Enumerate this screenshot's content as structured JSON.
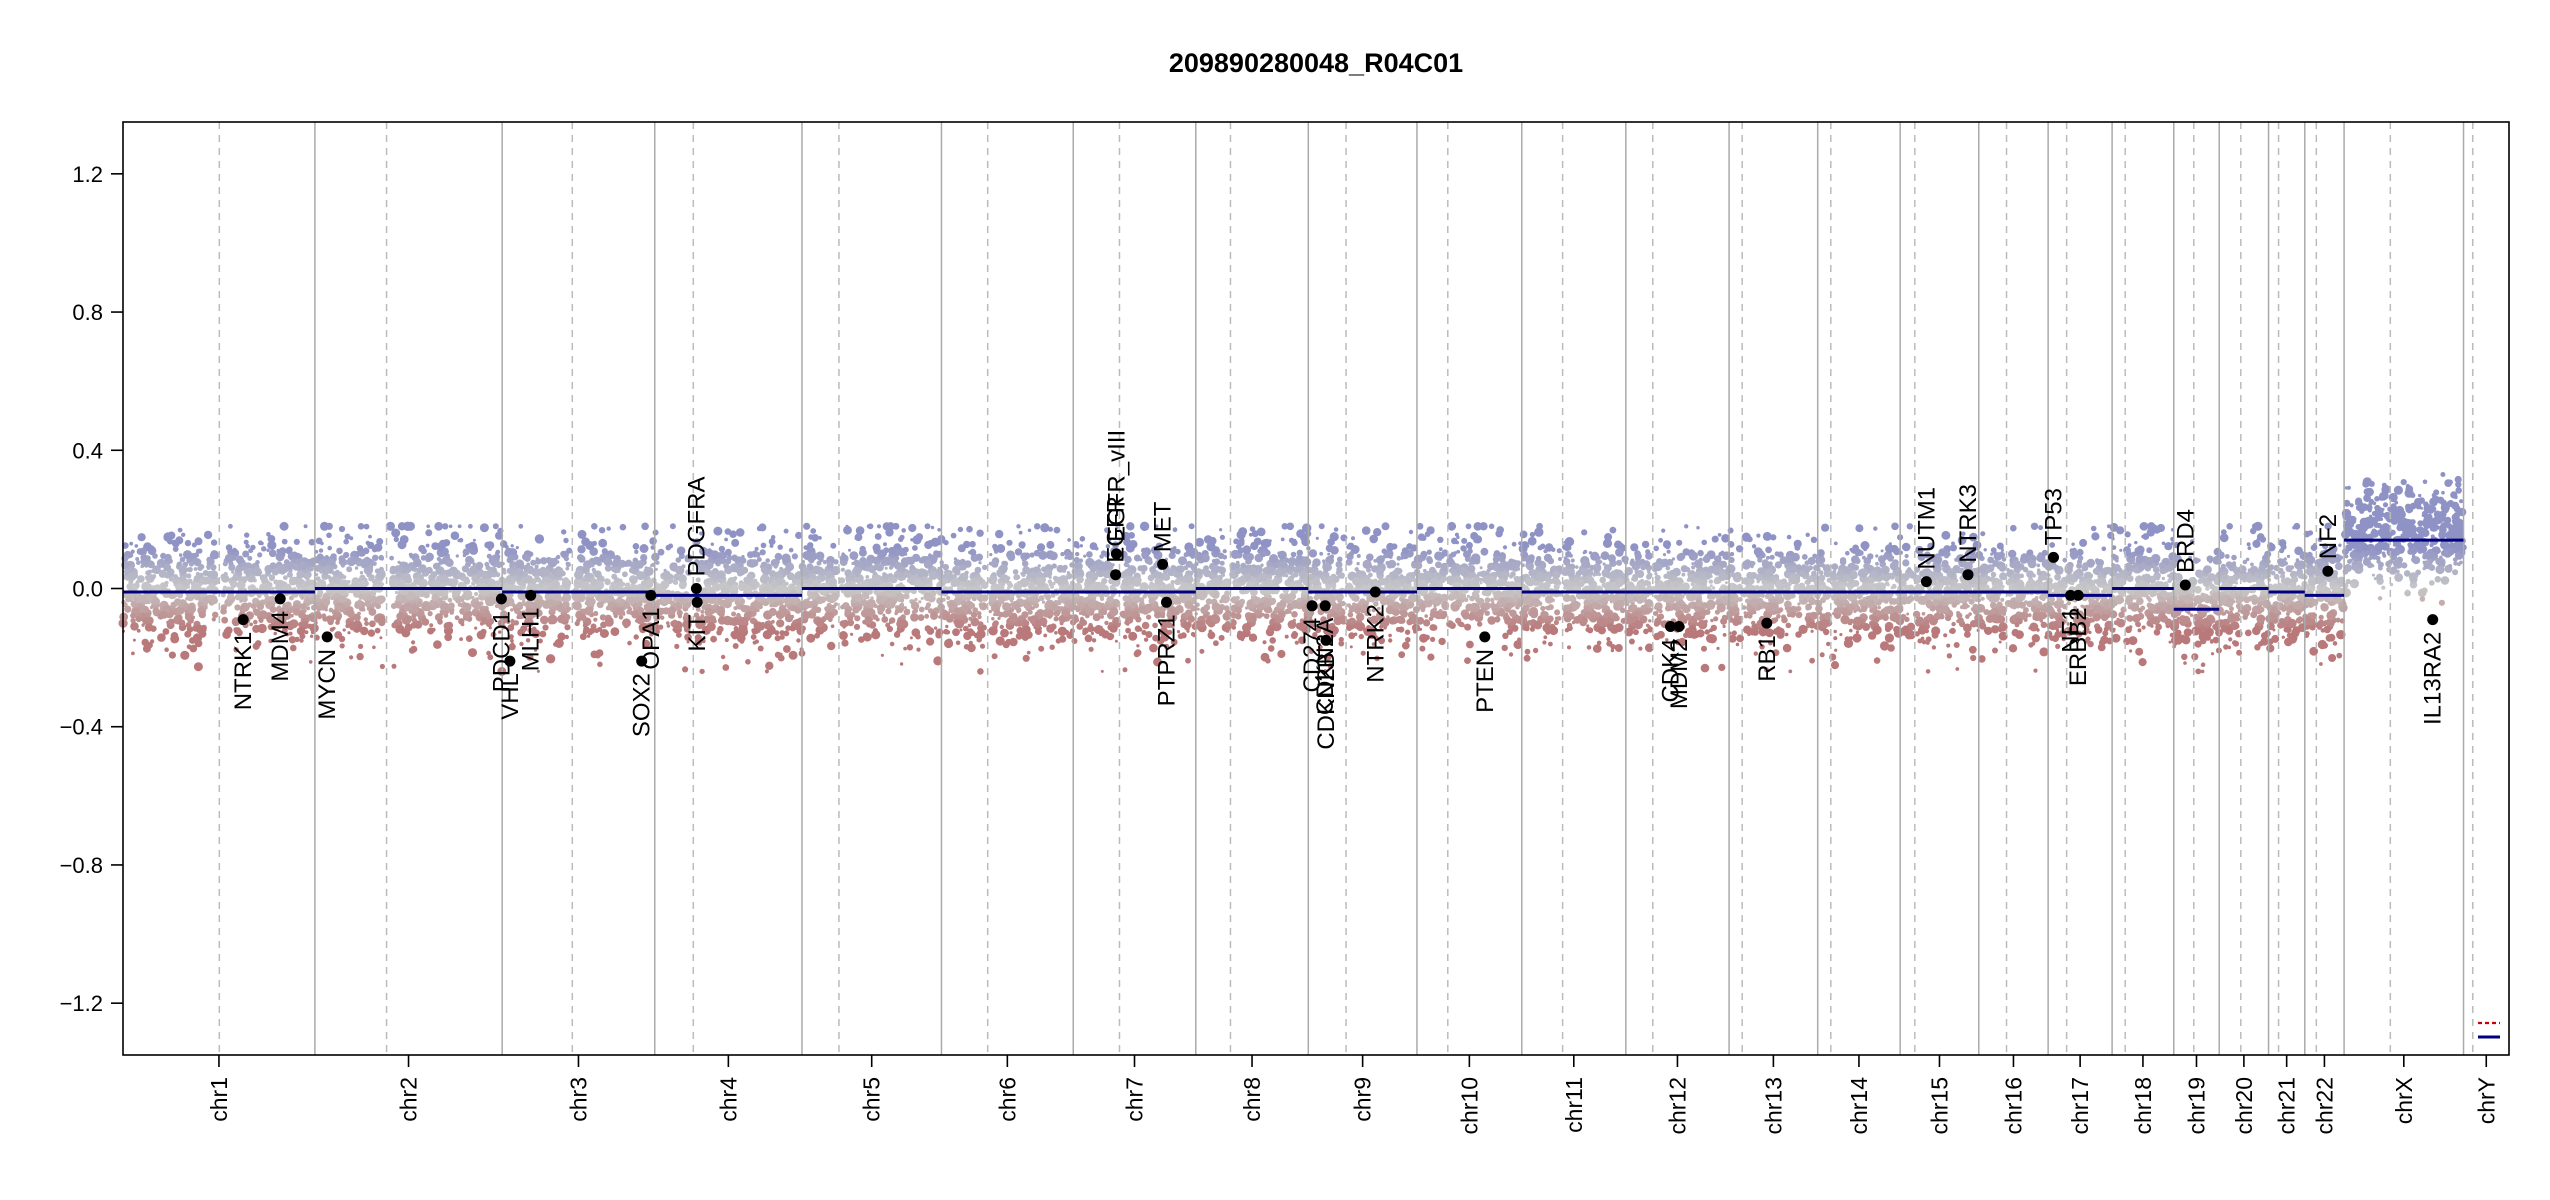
{
  "chart_data": {
    "type": "scatter",
    "title": "209890280048_R04C01",
    "xlabel": "",
    "ylabel": "",
    "ylim": [
      -1.35,
      1.35
    ],
    "y_ticks": [
      1.2,
      0.8,
      0.4,
      0.0,
      -0.4,
      -0.8,
      -1.2
    ],
    "y_tick_labels": [
      "1.2",
      "0.8",
      "0.4",
      "0.0",
      "−0.4",
      "−0.8",
      "−1.2"
    ],
    "x_unit": "Mb",
    "colors": {
      "gain": "#8f92c4",
      "loss": "#b9797a",
      "neutral": "#c8c8c8",
      "segment": "#000080",
      "gene_point": "#000000",
      "chrom_border": "#aaaaaa",
      "centromere": "#bbbbbb",
      "legend_red": "#cc0000"
    },
    "chromosomes": [
      {
        "name": "chr1",
        "length": 249,
        "centromere": 125,
        "segments": [
          {
            "start": 0,
            "end": 249,
            "value": -0.01
          }
        ]
      },
      {
        "name": "chr2",
        "length": 243,
        "centromere": 93,
        "segments": [
          {
            "start": 0,
            "end": 243,
            "value": 0.0
          }
        ]
      },
      {
        "name": "chr3",
        "length": 198,
        "centromere": 91,
        "segments": [
          {
            "start": 0,
            "end": 198,
            "value": -0.01
          }
        ]
      },
      {
        "name": "chr4",
        "length": 191,
        "centromere": 50,
        "segments": [
          {
            "start": 0,
            "end": 191,
            "value": -0.02
          }
        ]
      },
      {
        "name": "chr5",
        "length": 181,
        "centromere": 48,
        "segments": [
          {
            "start": 0,
            "end": 181,
            "value": 0.0
          }
        ]
      },
      {
        "name": "chr6",
        "length": 171,
        "centromere": 60,
        "segments": [
          {
            "start": 0,
            "end": 171,
            "value": -0.01
          }
        ]
      },
      {
        "name": "chr7",
        "length": 159,
        "centromere": 60,
        "segments": [
          {
            "start": 0,
            "end": 159,
            "value": -0.01
          }
        ]
      },
      {
        "name": "chr8",
        "length": 146,
        "centromere": 45,
        "segments": [
          {
            "start": 0,
            "end": 146,
            "value": 0.0
          }
        ]
      },
      {
        "name": "chr9",
        "length": 141,
        "centromere": 49,
        "segments": [
          {
            "start": 0,
            "end": 141,
            "value": -0.01
          }
        ]
      },
      {
        "name": "chr10",
        "length": 136,
        "centromere": 40,
        "segments": [
          {
            "start": 0,
            "end": 136,
            "value": 0.0
          }
        ]
      },
      {
        "name": "chr11",
        "length": 135,
        "centromere": 53,
        "segments": [
          {
            "start": 0,
            "end": 135,
            "value": -0.01
          }
        ]
      },
      {
        "name": "chr12",
        "length": 134,
        "centromere": 35,
        "segments": [
          {
            "start": 0,
            "end": 134,
            "value": -0.01
          }
        ]
      },
      {
        "name": "chr13",
        "length": 115,
        "centromere": 17,
        "segments": [
          {
            "start": 0,
            "end": 115,
            "value": -0.01
          }
        ]
      },
      {
        "name": "chr14",
        "length": 107,
        "centromere": 17,
        "segments": [
          {
            "start": 0,
            "end": 107,
            "value": -0.01
          }
        ]
      },
      {
        "name": "chr15",
        "length": 102,
        "centromere": 19,
        "segments": [
          {
            "start": 0,
            "end": 102,
            "value": -0.01
          }
        ]
      },
      {
        "name": "chr16",
        "length": 90,
        "centromere": 36,
        "segments": [
          {
            "start": 0,
            "end": 90,
            "value": -0.01
          }
        ]
      },
      {
        "name": "chr17",
        "length": 83,
        "centromere": 24,
        "segments": [
          {
            "start": 0,
            "end": 83,
            "value": -0.02
          }
        ]
      },
      {
        "name": "chr18",
        "length": 80,
        "centromere": 17,
        "segments": [
          {
            "start": 0,
            "end": 80,
            "value": 0.0
          }
        ]
      },
      {
        "name": "chr19",
        "length": 59,
        "centromere": 26,
        "segments": [
          {
            "start": 0,
            "end": 59,
            "value": -0.06
          }
        ]
      },
      {
        "name": "chr20",
        "length": 64,
        "centromere": 28,
        "segments": [
          {
            "start": 0,
            "end": 64,
            "value": 0.0
          }
        ]
      },
      {
        "name": "chr21",
        "length": 47,
        "centromere": 13,
        "segments": [
          {
            "start": 0,
            "end": 47,
            "value": -0.01
          }
        ]
      },
      {
        "name": "chr22",
        "length": 51,
        "centromere": 15,
        "segments": [
          {
            "start": 0,
            "end": 51,
            "value": -0.02
          }
        ]
      },
      {
        "name": "chrX",
        "length": 155,
        "centromere": 60,
        "segments": [
          {
            "start": 0,
            "end": 155,
            "value": 0.14
          }
        ]
      },
      {
        "name": "chrY",
        "length": 59,
        "centromere": 12,
        "segments": []
      }
    ],
    "genes": [
      {
        "name": "NTRK1",
        "chrom": "chr1",
        "pos": 156,
        "value": -0.09
      },
      {
        "name": "MDM4",
        "chrom": "chr1",
        "pos": 204,
        "value": -0.03
      },
      {
        "name": "MYCN",
        "chrom": "chr2",
        "pos": 16,
        "value": -0.14
      },
      {
        "name": "VHL",
        "chrom": "chr3",
        "pos": 10,
        "value": -0.21
      },
      {
        "name": "PDCD1",
        "chrom": "chr2",
        "pos": 242,
        "value": -0.03
      },
      {
        "name": "MLH1",
        "chrom": "chr3",
        "pos": 37,
        "value": -0.02
      },
      {
        "name": "SOX2",
        "chrom": "chr3",
        "pos": 181,
        "value": -0.21
      },
      {
        "name": "OPA1",
        "chrom": "chr3",
        "pos": 193,
        "value": -0.02
      },
      {
        "name": "KIT",
        "chrom": "chr4",
        "pos": 55,
        "value": -0.04
      },
      {
        "name": "PDGFRA",
        "chrom": "chr4",
        "pos": 54,
        "value": 0.0
      },
      {
        "name": "EGFR",
        "chrom": "chr7",
        "pos": 55,
        "value": 0.04
      },
      {
        "name": "EGFR_vIII",
        "chrom": "chr7",
        "pos": 56,
        "value": 0.1
      },
      {
        "name": "MET",
        "chrom": "chr7",
        "pos": 116,
        "value": 0.07
      },
      {
        "name": "CDKN2A",
        "chrom": "chr9",
        "pos": 22,
        "value": -0.05
      },
      {
        "name": "CDKN2B",
        "chrom": "chr9",
        "pos": 23,
        "value": -0.15
      },
      {
        "name": "CD274",
        "chrom": "chr9",
        "pos": 5,
        "value": -0.05
      },
      {
        "name": "PTPRZ1",
        "chrom": "chr7",
        "pos": 121,
        "value": -0.04
      },
      {
        "name": "NTRK2",
        "chrom": "chr9",
        "pos": 87,
        "value": -0.01
      },
      {
        "name": "PTEN",
        "chrom": "chr10",
        "pos": 88,
        "value": -0.14
      },
      {
        "name": "CDK4",
        "chrom": "chr12",
        "pos": 58,
        "value": -0.11
      },
      {
        "name": "MDM2",
        "chrom": "chr12",
        "pos": 69,
        "value": -0.11
      },
      {
        "name": "RB1",
        "chrom": "chr13",
        "pos": 49,
        "value": -0.1
      },
      {
        "name": "NUTM1",
        "chrom": "chr15",
        "pos": 34,
        "value": 0.02
      },
      {
        "name": "NTRK3",
        "chrom": "chr15",
        "pos": 88,
        "value": 0.04
      },
      {
        "name": "TP53",
        "chrom": "chr17",
        "pos": 7,
        "value": 0.09
      },
      {
        "name": "NF1",
        "chrom": "chr17",
        "pos": 29,
        "value": -0.02
      },
      {
        "name": "ERBB2",
        "chrom": "chr17",
        "pos": 39,
        "value": -0.02
      },
      {
        "name": "BRD4",
        "chrom": "chr19",
        "pos": 15,
        "value": 0.01
      },
      {
        "name": "NF2",
        "chrom": "chr22",
        "pos": 30,
        "value": 0.05
      },
      {
        "name": "IL13RA2",
        "chrom": "chrX",
        "pos": 115,
        "value": -0.09
      }
    ]
  }
}
